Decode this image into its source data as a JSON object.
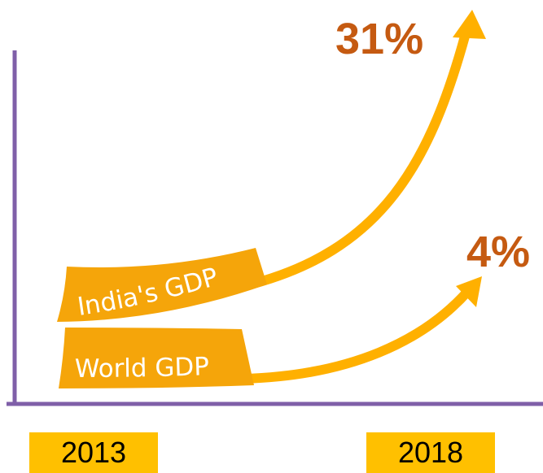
{
  "chart_data": {
    "type": "line",
    "x": [
      "2013",
      "2018"
    ],
    "series": [
      {
        "name": "India's GDP",
        "values": [
          0,
          31
        ],
        "end_label": "31%"
      },
      {
        "name": "World GDP",
        "values": [
          0,
          4
        ],
        "end_label": "4%"
      }
    ],
    "tick_labels": [
      "2013",
      "2018"
    ],
    "grid": false,
    "colors": {
      "arrow": "#ffb000",
      "ribbon": "#f5a50a",
      "axis": "#7f5fa8",
      "percent_label": "#c55a11",
      "year_box": "#ffc000"
    }
  }
}
